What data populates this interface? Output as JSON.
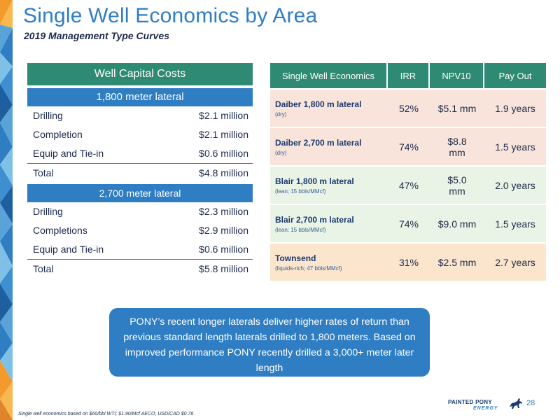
{
  "header": {
    "title": "Single Well Economics by Area",
    "subtitle": "2019 Management Type Curves"
  },
  "capital": {
    "title": "Well Capital Costs",
    "sections": [
      {
        "heading": "1,800 meter lateral",
        "rows": [
          {
            "label": "Drilling",
            "value": "$2.1 million"
          },
          {
            "label": "Completion",
            "value": "$2.1 million"
          },
          {
            "label": "Equip and Tie-in",
            "value": "$0.6 million"
          }
        ],
        "total": {
          "label": "Total",
          "value": "$4.8 million"
        }
      },
      {
        "heading": "2,700 meter lateral",
        "rows": [
          {
            "label": "Drilling",
            "value": "$2.3 million"
          },
          {
            "label": "Completions",
            "value": "$2.9 million"
          },
          {
            "label": "Equip and Tie-in",
            "value": "$0.6 million"
          }
        ],
        "total": {
          "label": "Total",
          "value": "$5.8 million"
        }
      }
    ]
  },
  "economics": {
    "headers": [
      "Single Well Economics",
      "IRR",
      "NPV10",
      "Pay Out"
    ],
    "rows": [
      {
        "name": "Daiber 1,800 m lateral",
        "note": "(dry)",
        "irr": "52%",
        "npv": "$5.1 mm",
        "payout": "1.9 years"
      },
      {
        "name": "Daiber 2,700 m lateral",
        "note": "(dry)",
        "irr": "74%",
        "npv": "$8.8 mm",
        "payout": "1.5 years"
      },
      {
        "name": "Blair 1,800 m lateral",
        "note": "(lean; 15 bbls/MMcf)",
        "irr": "47%",
        "npv": "$5.0 mm",
        "payout": "2.0 years"
      },
      {
        "name": "Blair 2,700 m lateral",
        "note": "(lean; 15 bbls/MMcf)",
        "irr": "74%",
        "npv": "$9.0 mm",
        "payout": "1.5 years"
      },
      {
        "name": "Townsend",
        "note": "(liquids-rich; 47 bbls/MMcf)",
        "irr": "31%",
        "npv": "$2.5 mm",
        "payout": "2.7 years"
      }
    ]
  },
  "callout": {
    "text": "PONY’s recent longer laterals deliver higher rates of return than previous standard length laterals drilled to 1,800 meters. Based on improved performance PONY recently drilled a 3,000+ meter later length"
  },
  "footer": {
    "footnote": "Single well economics based on $60/bbl WTI; $1.90/Mcf AECO; USD/CAD $0.76",
    "page_number": "28",
    "logo_line1": "PAINTED PONY",
    "logo_line2": "ENERGY",
    "logo_icon": "horse-icon"
  },
  "colors": {
    "title_blue": "#2f7dc3",
    "header_green": "#2e8a72",
    "row_pink": "#f9e4dc",
    "row_green": "#eaf4e6",
    "row_peach": "#fbe5cc",
    "deco_orange": "#f29a2e"
  }
}
